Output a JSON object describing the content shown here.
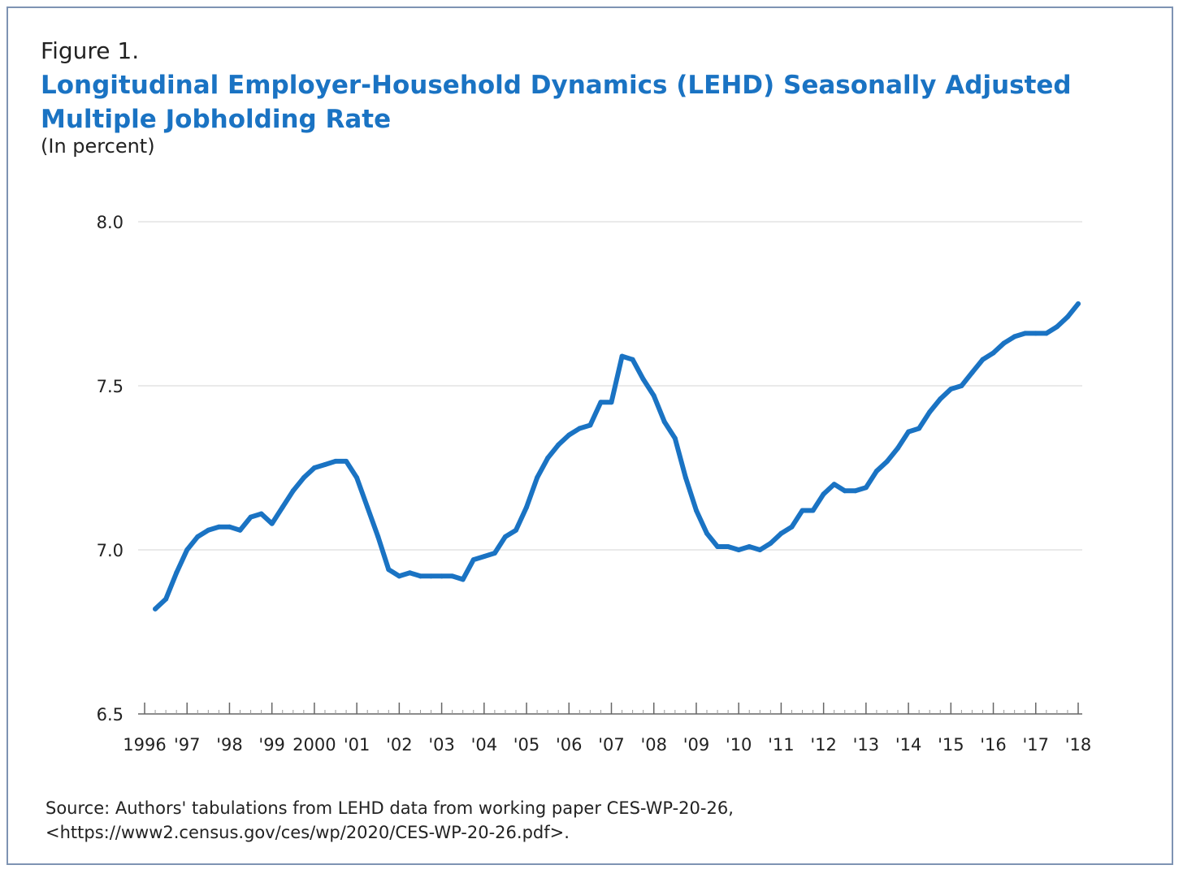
{
  "figure": {
    "label": "Figure 1.",
    "title": "Longitudinal Employer-Household Dynamics (LEHD) Seasonally Adjusted Multiple Jobholding Rate",
    "subtitle": "(In percent)",
    "source_line1": "Source: Authors' tabulations from LEHD data from working paper CES-WP-20-26,",
    "source_line2": "<https://www2.census.gov/ces/wp/2020/CES-WP-20-26.pdf>."
  },
  "colors": {
    "line": "#1a73c3",
    "title": "#1a73c3",
    "frame": "#7e93b3",
    "grid": "#dddddd",
    "axis": "#666666"
  },
  "chart_data": {
    "type": "line",
    "title": "Longitudinal Employer-Household Dynamics (LEHD) Seasonally Adjusted Multiple Jobholding Rate",
    "ylabel": "(In percent)",
    "xlabel": "",
    "ylim": [
      6.5,
      8.0
    ],
    "xlim": [
      1996.0,
      2018.0
    ],
    "yticks": [
      6.5,
      7.0,
      7.5,
      8.0
    ],
    "ytick_labels": [
      "6.5",
      "7.0",
      "7.5",
      "8.0"
    ],
    "xticks": [
      1996,
      1997,
      1998,
      1999,
      2000,
      2001,
      2002,
      2003,
      2004,
      2005,
      2006,
      2007,
      2008,
      2009,
      2010,
      2011,
      2012,
      2013,
      2014,
      2015,
      2016,
      2017,
      2018
    ],
    "xtick_labels": [
      "1996",
      "'97",
      "'98",
      "'99",
      "2000",
      "'01",
      "'02",
      "'03",
      "'04",
      "'05",
      "'06",
      "'07",
      "'08",
      "'09",
      "'10",
      "'11",
      "'12",
      "'13",
      "'14",
      "'15",
      "'16",
      "'17",
      "'18"
    ],
    "grid": "horizontal",
    "legend": "none",
    "series": [
      {
        "x": [
          1996.25,
          1996.5,
          1996.75,
          1997.0,
          1997.25,
          1997.5,
          1997.75,
          1998.0,
          1998.25,
          1998.5,
          1998.75,
          1999.0,
          1999.25,
          1999.5,
          1999.75,
          2000.0,
          2000.25,
          2000.5,
          2000.75,
          2001.0,
          2001.25,
          2001.5,
          2001.75,
          2002.0,
          2002.25,
          2002.5,
          2002.75,
          2003.0,
          2003.25,
          2003.5,
          2003.75,
          2004.0,
          2004.25,
          2004.5,
          2004.75,
          2005.0,
          2005.25,
          2005.5,
          2005.75,
          2006.0,
          2006.25,
          2006.5,
          2006.75,
          2007.0,
          2007.25,
          2007.5,
          2007.75,
          2008.0,
          2008.25,
          2008.5,
          2008.75,
          2009.0,
          2009.25,
          2009.5,
          2009.75,
          2010.0,
          2010.25,
          2010.5,
          2010.75,
          2011.0,
          2011.25,
          2011.5,
          2011.75,
          2012.0,
          2012.25,
          2012.5,
          2012.75,
          2013.0,
          2013.25,
          2013.5,
          2013.75,
          2014.0,
          2014.25,
          2014.5,
          2014.75,
          2015.0,
          2015.25,
          2015.5,
          2015.75,
          2016.0,
          2016.25,
          2016.5,
          2016.75,
          2017.0,
          2017.25,
          2017.5,
          2017.75,
          2018.0
        ],
        "values": [
          6.82,
          6.85,
          6.93,
          7.0,
          7.04,
          7.06,
          7.07,
          7.07,
          7.06,
          7.1,
          7.11,
          7.08,
          7.13,
          7.18,
          7.22,
          7.25,
          7.26,
          7.27,
          7.27,
          7.22,
          7.13,
          7.04,
          6.94,
          6.92,
          6.93,
          6.92,
          6.92,
          6.92,
          6.92,
          6.91,
          6.97,
          6.98,
          6.99,
          7.04,
          7.06,
          7.13,
          7.22,
          7.28,
          7.32,
          7.35,
          7.37,
          7.38,
          7.45,
          7.45,
          7.59,
          7.58,
          7.52,
          7.47,
          7.39,
          7.34,
          7.22,
          7.12,
          7.05,
          7.01,
          7.01,
          7.0,
          7.01,
          7.0,
          7.02,
          7.05,
          7.07,
          7.12,
          7.12,
          7.17,
          7.2,
          7.18,
          7.18,
          7.19,
          7.24,
          7.27,
          7.31,
          7.36,
          7.37,
          7.42,
          7.46,
          7.49,
          7.5,
          7.54,
          7.58,
          7.6,
          7.63,
          7.65,
          7.66,
          7.66,
          7.66,
          7.68,
          7.71,
          7.75
        ]
      }
    ]
  }
}
